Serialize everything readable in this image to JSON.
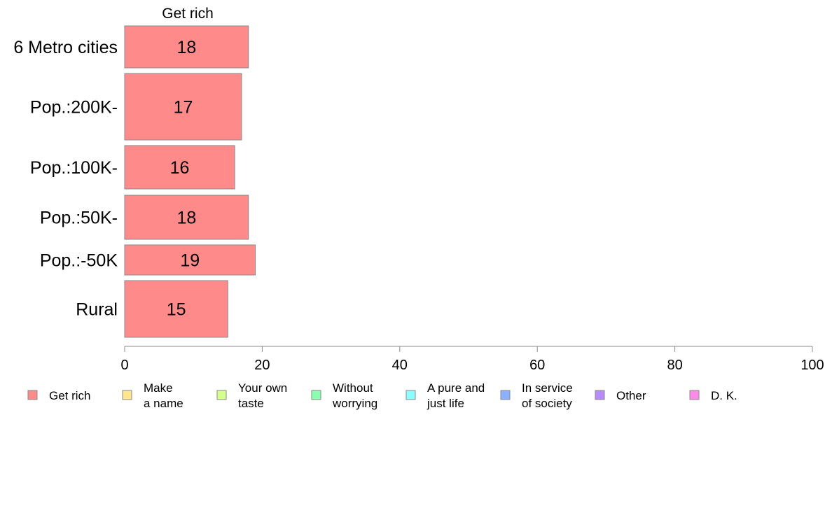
{
  "chart_data": {
    "type": "bar",
    "orientation": "horizontal",
    "column_title": "Get rich",
    "categories": [
      "6 Metro cities",
      "Pop.:200K-",
      "Pop.:100K-",
      "Pop.:50K-",
      "Pop.:-50K",
      "Rural"
    ],
    "series": [
      {
        "name": "Get rich",
        "values": [
          18,
          17,
          16,
          18,
          19,
          15
        ]
      }
    ],
    "xlim": [
      0,
      100
    ],
    "xticks": [
      "0",
      "20",
      "40",
      "60",
      "80",
      "100"
    ],
    "xlabel": "",
    "ylabel": "",
    "grid": false,
    "bar_color": "#ff8a8a",
    "bar_edge_color": "#8a8a8a",
    "legend_position": "bottom",
    "legend": [
      {
        "label": "Get rich",
        "color": "#ff8a8a"
      },
      {
        "label": "Make\na name",
        "color": "#ffe68a"
      },
      {
        "label": "Your own\ntaste",
        "color": "#d4ff8a"
      },
      {
        "label": "Without\nworrying",
        "color": "#8affb0"
      },
      {
        "label": "A pure and\njust life",
        "color": "#8affff"
      },
      {
        "label": "In service\nof society",
        "color": "#8ab0ff"
      },
      {
        "label": "Other",
        "color": "#b88aff"
      },
      {
        "label": "D. K.",
        "color": "#ff8ae6"
      }
    ]
  }
}
